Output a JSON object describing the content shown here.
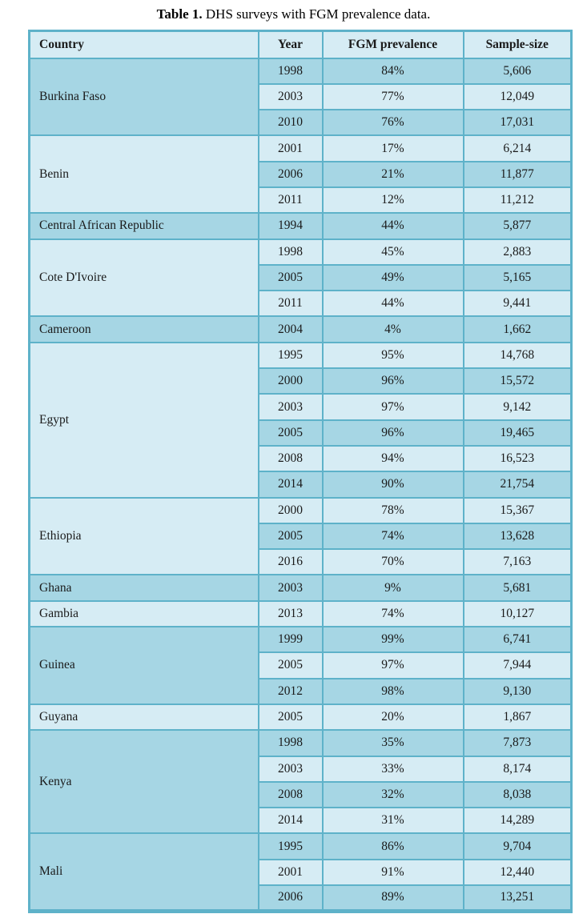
{
  "title": {
    "prefix": "Table 1.",
    "rest": " DHS surveys with FGM prevalence data."
  },
  "colors": {
    "row_dark": "#a6d6e4",
    "row_light": "#d6ecf4",
    "grid_border": "#5eb2c9",
    "text": "#1a1a1a"
  },
  "table": {
    "headers": [
      "Country",
      "Year",
      "FGM prevalence",
      "Sample-size"
    ],
    "groups": [
      {
        "country": "Burkina Faso",
        "rows": [
          {
            "year": "1998",
            "prevalence": "84%",
            "sample": "5,606"
          },
          {
            "year": "2003",
            "prevalence": "77%",
            "sample": "12,049"
          },
          {
            "year": "2010",
            "prevalence": "76%",
            "sample": "17,031"
          }
        ]
      },
      {
        "country": "Benin",
        "rows": [
          {
            "year": "2001",
            "prevalence": "17%",
            "sample": "6,214"
          },
          {
            "year": "2006",
            "prevalence": "21%",
            "sample": "11,877"
          },
          {
            "year": "2011",
            "prevalence": "12%",
            "sample": "11,212"
          }
        ]
      },
      {
        "country": "Central African Republic",
        "rows": [
          {
            "year": "1994",
            "prevalence": "44%",
            "sample": "5,877"
          }
        ]
      },
      {
        "country": "Cote D'Ivoire",
        "rows": [
          {
            "year": "1998",
            "prevalence": "45%",
            "sample": "2,883"
          },
          {
            "year": "2005",
            "prevalence": "49%",
            "sample": "5,165"
          },
          {
            "year": "2011",
            "prevalence": "44%",
            "sample": "9,441"
          }
        ]
      },
      {
        "country": "Cameroon",
        "rows": [
          {
            "year": "2004",
            "prevalence": "4%",
            "sample": "1,662"
          }
        ]
      },
      {
        "country": "Egypt",
        "rows": [
          {
            "year": "1995",
            "prevalence": "95%",
            "sample": "14,768"
          },
          {
            "year": "2000",
            "prevalence": "96%",
            "sample": "15,572"
          },
          {
            "year": "2003",
            "prevalence": "97%",
            "sample": "9,142"
          },
          {
            "year": "2005",
            "prevalence": "96%",
            "sample": "19,465"
          },
          {
            "year": "2008",
            "prevalence": "94%",
            "sample": "16,523"
          },
          {
            "year": "2014",
            "prevalence": "90%",
            "sample": "21,754"
          }
        ]
      },
      {
        "country": "Ethiopia",
        "rows": [
          {
            "year": "2000",
            "prevalence": "78%",
            "sample": "15,367"
          },
          {
            "year": "2005",
            "prevalence": "74%",
            "sample": "13,628"
          },
          {
            "year": "2016",
            "prevalence": "70%",
            "sample": "7,163"
          }
        ]
      },
      {
        "country": "Ghana",
        "rows": [
          {
            "year": "2003",
            "prevalence": "9%",
            "sample": "5,681"
          }
        ]
      },
      {
        "country": "Gambia",
        "rows": [
          {
            "year": "2013",
            "prevalence": "74%",
            "sample": "10,127"
          }
        ]
      },
      {
        "country": "Guinea",
        "rows": [
          {
            "year": "1999",
            "prevalence": "99%",
            "sample": "6,741"
          },
          {
            "year": "2005",
            "prevalence": "97%",
            "sample": "7,944"
          },
          {
            "year": "2012",
            "prevalence": "98%",
            "sample": "9,130"
          }
        ]
      },
      {
        "country": "Guyana",
        "rows": [
          {
            "year": "2005",
            "prevalence": "20%",
            "sample": "1,867"
          }
        ]
      },
      {
        "country": "Kenya",
        "rows": [
          {
            "year": "1998",
            "prevalence": "35%",
            "sample": "7,873"
          },
          {
            "year": "2003",
            "prevalence": "33%",
            "sample": "8,174"
          },
          {
            "year": "2008",
            "prevalence": "32%",
            "sample": "8,038"
          },
          {
            "year": "2014",
            "prevalence": "31%",
            "sample": "14,289"
          }
        ]
      },
      {
        "country": "Mali",
        "rows": [
          {
            "year": "1995",
            "prevalence": "86%",
            "sample": "9,704"
          },
          {
            "year": "2001",
            "prevalence": "91%",
            "sample": "12,440"
          },
          {
            "year": "2006",
            "prevalence": "89%",
            "sample": "13,251"
          }
        ]
      }
    ]
  }
}
